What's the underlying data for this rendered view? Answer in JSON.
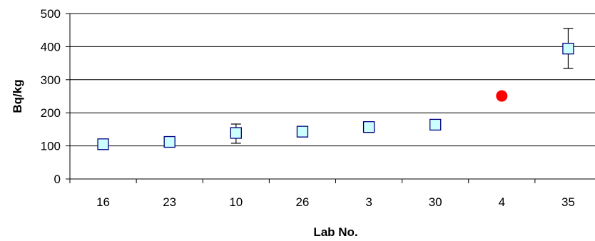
{
  "chart_data": {
    "type": "scatter",
    "title": "",
    "xlabel": "Lab No.",
    "ylabel": "Bq/kg",
    "categories": [
      "16",
      "23",
      "10",
      "26",
      "3",
      "30",
      "4",
      "35"
    ],
    "ylim": [
      0,
      500
    ],
    "yticks": [
      0,
      100,
      200,
      300,
      400,
      500
    ],
    "grid": true,
    "legend": "none",
    "points": [
      {
        "category": "16",
        "value": 105,
        "error_low": null,
        "error_high": null,
        "marker": "square",
        "fill": "#ccffff"
      },
      {
        "category": "23",
        "value": 112,
        "error_low": null,
        "error_high": null,
        "marker": "square",
        "fill": "#ccffff"
      },
      {
        "category": "10",
        "value": 139,
        "error_low": 108,
        "error_high": 166,
        "marker": "square",
        "fill": "#ccffff"
      },
      {
        "category": "26",
        "value": 143,
        "error_low": null,
        "error_high": null,
        "marker": "square",
        "fill": "#ccffff"
      },
      {
        "category": "3",
        "value": 157,
        "error_low": 141,
        "error_high": 160,
        "marker": "square",
        "fill": "#ccffff"
      },
      {
        "category": "30",
        "value": 164,
        "error_low": null,
        "error_high": null,
        "marker": "square",
        "fill": "#ccffff"
      },
      {
        "category": "4",
        "value": 251,
        "error_low": null,
        "error_high": null,
        "marker": "circle",
        "fill": "#ff0000"
      },
      {
        "category": "35",
        "value": 394,
        "error_low": 334,
        "error_high": 455,
        "marker": "square",
        "fill": "#ccffff"
      }
    ],
    "colors": {
      "axis": "#000000",
      "grid": "#000000",
      "square_edge": "#000080",
      "square_fill": "#ccffff",
      "circle_fill": "#ff0000"
    }
  }
}
